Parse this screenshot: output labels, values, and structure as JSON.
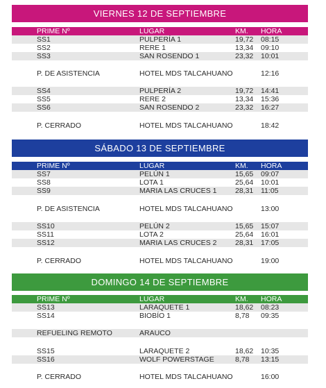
{
  "theme": {
    "friday_color": "#c8177b",
    "saturday_color": "#1d3f9e",
    "sunday_color": "#3d9a3e",
    "shade_color": "#e6e6e6"
  },
  "days": [
    {
      "title": "VIERNES 12 DE SEPTIEMBRE",
      "header": {
        "prime": "PRIME Nº",
        "lugar": "LUGAR",
        "km": "KM.",
        "hora": "HORA"
      },
      "rows": [
        {
          "prime": "SS1",
          "lugar": "PULPERÍA 1",
          "km": "19,72",
          "hora": "08:15"
        },
        {
          "prime": "SS2",
          "lugar": "RERE 1",
          "km": "13,34",
          "hora": "09:10"
        },
        {
          "prime": "SS3",
          "lugar": "SAN ROSENDO 1",
          "km": "23,32",
          "hora": "10:01"
        },
        {
          "prime": "P. DE ASISTENCIA",
          "lugar": "HOTEL MDS TALCAHUANO",
          "km": "",
          "hora": "12:16"
        },
        {
          "prime": "SS4",
          "lugar": "PULPERÍA 2",
          "km": "19,72",
          "hora": "14:41"
        },
        {
          "prime": "SS5",
          "lugar": "RERE 2",
          "km": "13,34",
          "hora": "15:36"
        },
        {
          "prime": "SS6",
          "lugar": "SAN ROSENDO 2",
          "km": "23,32",
          "hora": "16:27"
        },
        {
          "prime": "P. CERRADO",
          "lugar": "HOTEL MDS TALCAHUANO",
          "km": "",
          "hora": "18:42"
        }
      ]
    },
    {
      "title": "SÁBADO 13 DE SEPTIEMBRE",
      "header": {
        "prime": "PRIME Nº",
        "lugar": "LUGAR",
        "km": "KM.",
        "hora": "HORA"
      },
      "rows": [
        {
          "prime": "SS7",
          "lugar": "PELÚN 1",
          "km": "15,65",
          "hora": "09:07"
        },
        {
          "prime": "SS8",
          "lugar": "LOTA 1",
          "km": "25,64",
          "hora": "10:01"
        },
        {
          "prime": "SS9",
          "lugar": "MARIA LAS CRUCES 1",
          "km": "28,31",
          "hora": "11:05"
        },
        {
          "prime": "P. DE ASISTENCIA",
          "lugar": "HOTEL MDS TALCAHUANO",
          "km": "",
          "hora": "13:00"
        },
        {
          "prime": "SS10",
          "lugar": "PELÚN 2",
          "km": "15,65",
          "hora": "15:07"
        },
        {
          "prime": "SS11",
          "lugar": "LOTA 2",
          "km": "25,64",
          "hora": "16:01"
        },
        {
          "prime": "SS12",
          "lugar": "MARIA LAS CRUCES 2",
          "km": "28,31",
          "hora": "17:05"
        },
        {
          "prime": "P. CERRADO",
          "lugar": "HOTEL MDS TALCAHUANO",
          "km": "",
          "hora": "19:00"
        }
      ]
    },
    {
      "title": "DOMINGO 14 DE SEPTIEMBRE",
      "header": {
        "prime": "PRIME Nº",
        "lugar": "LUGAR",
        "km": "KM.",
        "hora": "HORA"
      },
      "rows": [
        {
          "prime": "SS13",
          "lugar": "LARAQUETE 1",
          "km": "18,62",
          "hora": "08:23"
        },
        {
          "prime": "SS14",
          "lugar": "BIOBÍO 1",
          "km": "8,78",
          "hora": "09:35"
        },
        {
          "prime": "REFUELING REMOTO",
          "lugar": "ARAUCO",
          "km": "",
          "hora": ""
        },
        {
          "prime": "SS15",
          "lugar": "LARAQUETE 2",
          "km": "18,62",
          "hora": "10:35"
        },
        {
          "prime": "SS16",
          "lugar": "WOLF POWERSTAGE",
          "km": "8,78",
          "hora": "13:15"
        },
        {
          "prime": "P. CERRADO",
          "lugar": "HOTEL MDS TALCAHUANO",
          "km": "",
          "hora": "16:00"
        }
      ]
    }
  ]
}
